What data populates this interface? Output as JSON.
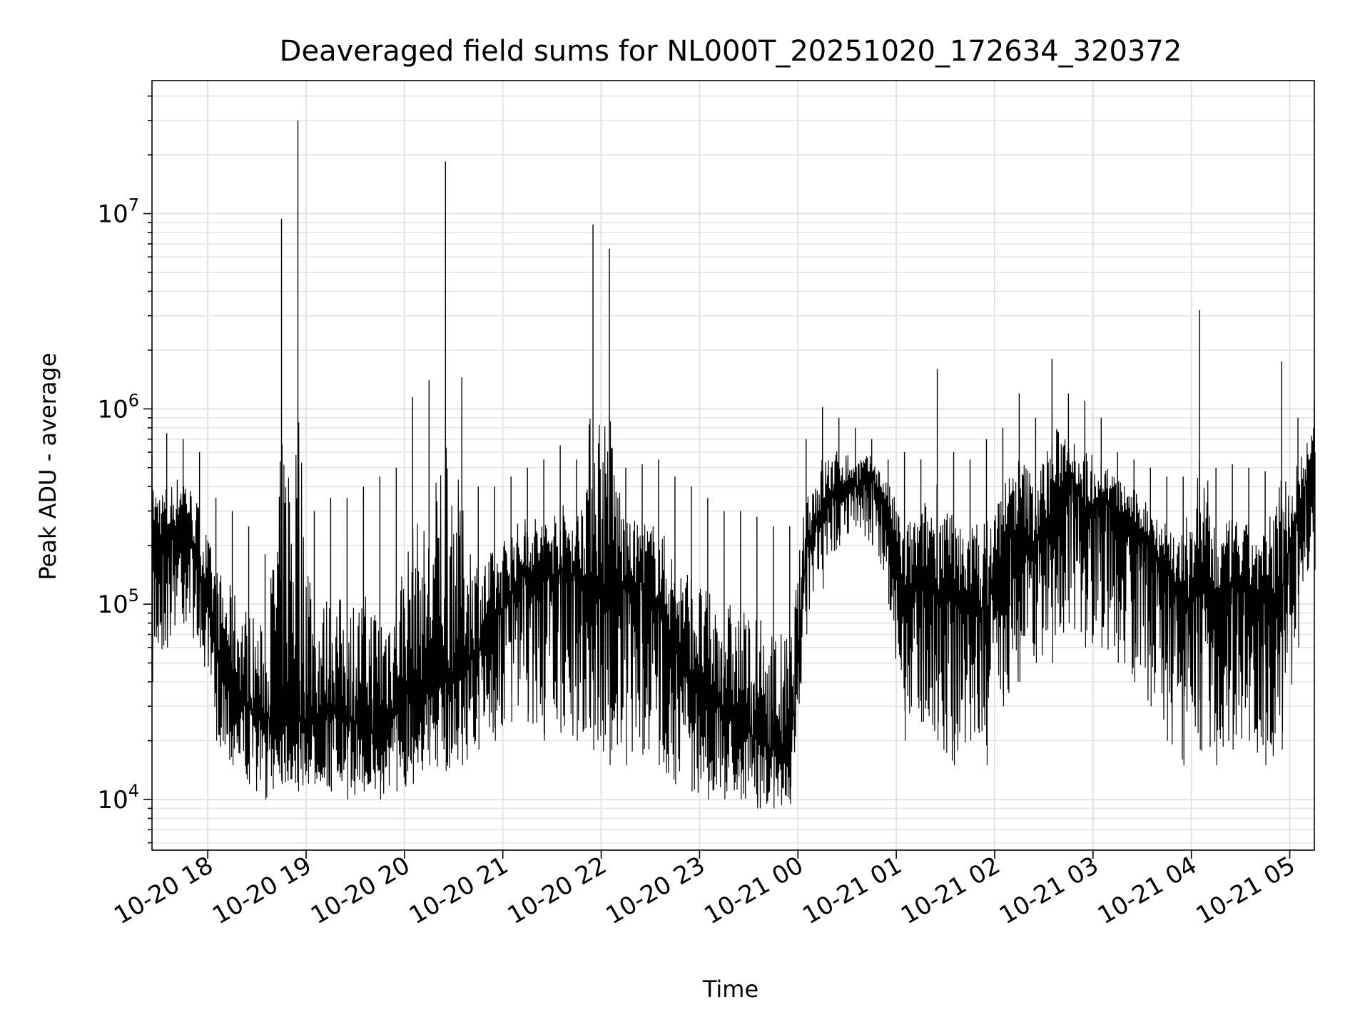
{
  "chart_data": {
    "type": "line",
    "title": "Deaveraged field sums for NL000T_20251020_172634_320372",
    "xlabel": "Time",
    "ylabel": "Peak ADU - average",
    "x_range": [
      "2025-10-20 17:26",
      "2025-10-21 05:15"
    ],
    "x_ticks": [
      "10-20 18",
      "10-20 19",
      "10-20 20",
      "10-20 21",
      "10-20 22",
      "10-20 23",
      "10-21 00",
      "10-21 01",
      "10-21 02",
      "10-21 03",
      "10-21 04",
      "10-21 05"
    ],
    "y_scale": "log",
    "ylim": [
      5500,
      48000000
    ],
    "y_ticks": [
      10000,
      100000,
      1000000,
      10000000
    ],
    "y_tick_exponents": [
      "4",
      "5",
      "6",
      "7"
    ],
    "grid": true,
    "line_color": "#000000",
    "series": [
      {
        "x": [
          "2025-10-20 17:26",
          "2025-10-20 17:35",
          "2025-10-20 17:45",
          "2025-10-20 17:55",
          "2025-10-20 18:05",
          "2025-10-20 18:15",
          "2025-10-20 18:25",
          "2025-10-20 18:35",
          "2025-10-20 18:45",
          "2025-10-20 18:55",
          "2025-10-20 19:05",
          "2025-10-20 19:15",
          "2025-10-20 19:25",
          "2025-10-20 19:35",
          "2025-10-20 19:45",
          "2025-10-20 19:55",
          "2025-10-20 20:05",
          "2025-10-20 20:15",
          "2025-10-20 20:25",
          "2025-10-20 20:35",
          "2025-10-20 20:45",
          "2025-10-20 20:55",
          "2025-10-20 21:05",
          "2025-10-20 21:15",
          "2025-10-20 21:25",
          "2025-10-20 21:35",
          "2025-10-20 21:45",
          "2025-10-20 21:55",
          "2025-10-20 22:05",
          "2025-10-20 22:15",
          "2025-10-20 22:25",
          "2025-10-20 22:35",
          "2025-10-20 22:45",
          "2025-10-20 22:55",
          "2025-10-20 23:05",
          "2025-10-20 23:15",
          "2025-10-20 23:25",
          "2025-10-20 23:35",
          "2025-10-20 23:45",
          "2025-10-20 23:55",
          "2025-10-21 00:05",
          "2025-10-21 00:15",
          "2025-10-21 00:25",
          "2025-10-21 00:35",
          "2025-10-21 00:45",
          "2025-10-21 00:55",
          "2025-10-21 01:05",
          "2025-10-21 01:15",
          "2025-10-21 01:25",
          "2025-10-21 01:35",
          "2025-10-21 01:45",
          "2025-10-21 01:55",
          "2025-10-21 02:05",
          "2025-10-21 02:15",
          "2025-10-21 02:25",
          "2025-10-21 02:35",
          "2025-10-21 02:45",
          "2025-10-21 02:55",
          "2025-10-21 03:05",
          "2025-10-21 03:15",
          "2025-10-21 03:25",
          "2025-10-21 03:35",
          "2025-10-21 03:45",
          "2025-10-21 03:55",
          "2025-10-21 04:05",
          "2025-10-21 04:15",
          "2025-10-21 04:25",
          "2025-10-21 04:35",
          "2025-10-21 04:45",
          "2025-10-21 04:55",
          "2025-10-21 05:05",
          "2025-10-21 05:15"
        ],
        "y": [
          250000,
          200000,
          300000,
          150000,
          60000,
          40000,
          30000,
          25000,
          30000,
          25000,
          25000,
          30000,
          25000,
          25000,
          20000,
          30000,
          45000,
          35000,
          40000,
          50000,
          60000,
          80000,
          120000,
          150000,
          130000,
          150000,
          140000,
          130000,
          110000,
          120000,
          130000,
          100000,
          60000,
          45000,
          30000,
          30000,
          25000,
          20000,
          18000,
          15000,
          200000,
          300000,
          400000,
          400000,
          450000,
          300000,
          100000,
          150000,
          120000,
          100000,
          110000,
          90000,
          200000,
          250000,
          200000,
          300000,
          500000,
          300000,
          350000,
          300000,
          250000,
          200000,
          150000,
          100000,
          120000,
          100000,
          130000,
          120000,
          100000,
          120000,
          300000,
          600000
        ],
        "min": [
          40000,
          60000,
          80000,
          60000,
          20000,
          15000,
          12000,
          10000,
          12000,
          11000,
          12000,
          11000,
          10000,
          11000,
          10000,
          11000,
          12000,
          15000,
          14000,
          15000,
          18000,
          20000,
          25000,
          25000,
          20000,
          22000,
          20000,
          18000,
          15000,
          15000,
          17000,
          15000,
          12000,
          11000,
          10000,
          10000,
          10000,
          9000,
          9000,
          9500,
          70000,
          120000,
          200000,
          250000,
          200000,
          100000,
          20000,
          25000,
          20000,
          15000,
          20000,
          15000,
          30000,
          40000,
          50000,
          50000,
          80000,
          60000,
          60000,
          50000,
          40000,
          30000,
          20000,
          15000,
          18000,
          15000,
          18000,
          20000,
          15000,
          18000,
          60000,
          150000
        ],
        "max": [
          580000,
          750000,
          700000,
          600000,
          350000,
          300000,
          250000,
          180000,
          9400000,
          30000000,
          300000,
          350000,
          350000,
          400000,
          450000,
          500000,
          1150000,
          1400000,
          18500000,
          1450000,
          400000,
          400000,
          450000,
          500000,
          550000,
          650000,
          550000,
          8800000,
          6600000,
          500000,
          520000,
          550000,
          450000,
          400000,
          350000,
          300000,
          300000,
          280000,
          250000,
          250000,
          700000,
          1020000,
          900000,
          800000,
          700000,
          550000,
          600000,
          550000,
          1600000,
          600000,
          550000,
          700000,
          800000,
          1200000,
          900000,
          1800000,
          1200000,
          1100000,
          900000,
          600000,
          550000,
          500000,
          450000,
          450000,
          3200000,
          500000,
          520000,
          500000,
          480000,
          1750000,
          900000,
          1100000
        ]
      }
    ]
  }
}
